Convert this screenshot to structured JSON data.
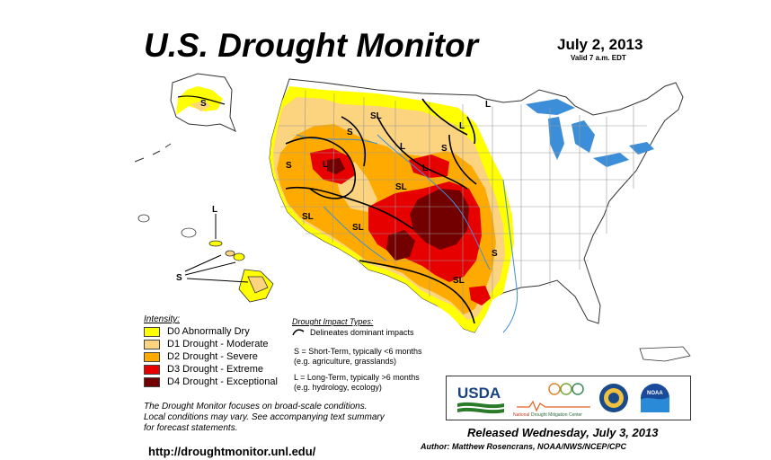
{
  "header": {
    "title": "U.S. Drought Monitor",
    "date": "July 2, 2013",
    "valid": "Valid 7 a.m. EDT"
  },
  "legend": {
    "title": "Intensity:",
    "items": [
      {
        "label": "D0 Abnormally Dry",
        "color": "#ffff00"
      },
      {
        "label": "D1 Drought - Moderate",
        "color": "#fcd37f"
      },
      {
        "label": "D2 Drought - Severe",
        "color": "#ffaa00"
      },
      {
        "label": "D3 Drought - Extreme",
        "color": "#e60000"
      },
      {
        "label": "D4 Drought - Exceptional",
        "color": "#730000"
      }
    ]
  },
  "impact": {
    "title": "Drought Impact Types:",
    "delineates": "Delineates dominant impacts",
    "short_term_line1": "S = Short-Term, typically <6 months",
    "short_term_line2": "(e.g. agriculture, grasslands)",
    "long_term_line1": "L = Long-Term, typically >6 months",
    "long_term_line2": "(e.g. hydrology, ecology)"
  },
  "note": {
    "line1": "The Drought Monitor focuses on broad-scale conditions.",
    "line2": "Local conditions may vary. See accompanying text summary",
    "line3": "for forecast statements."
  },
  "url": "http://droughtmonitor.unl.edu/",
  "logos": {
    "usda": "USDA",
    "ndmc_line1": "National",
    "ndmc_line2": "Drought Mitigation Center",
    "noaa": "NOAA"
  },
  "footer": {
    "released": "Released Wednesday, July 3, 2013",
    "author": "Author: Matthew Rosencrans, NOAA/NWS/NCEP/CPC"
  },
  "map_labels": {
    "alaska_s": "S",
    "hawaii_l": "L",
    "hawaii_s": "S",
    "sl_1": "SL",
    "sl_2": "SL",
    "sl_3": "SL",
    "sl_4": "SL",
    "sl_5": "SL",
    "s_1": "S",
    "s_2": "S",
    "s_3": "S",
    "s_4": "S",
    "l_1": "L",
    "l_2": "L",
    "l_3": "L",
    "l_4": "L",
    "l_5": "L"
  },
  "colors": {
    "water": "#3d8ed8",
    "state_line": "#9a9a9a",
    "boundary": "#000000"
  }
}
